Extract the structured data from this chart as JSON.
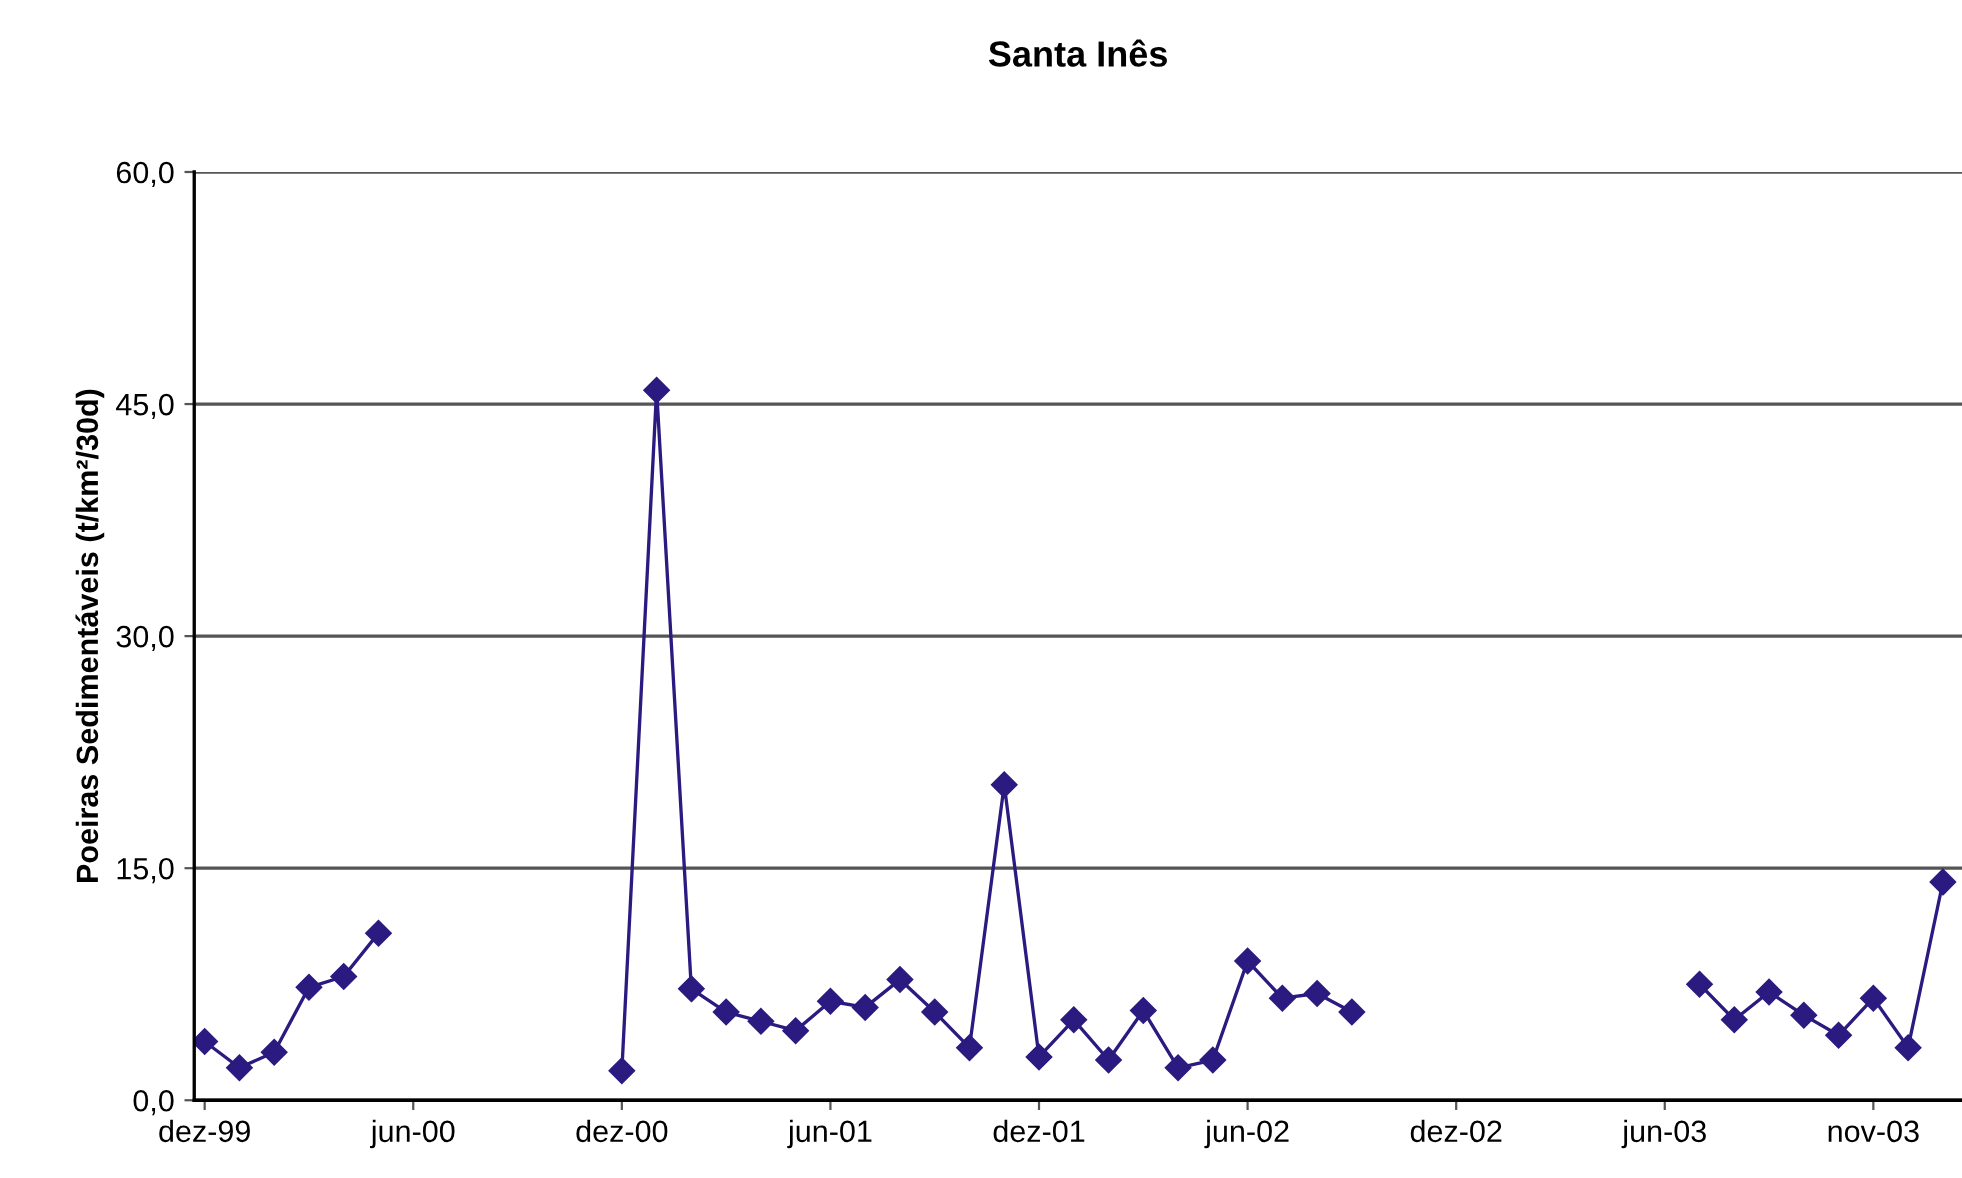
{
  "chart_data": {
    "type": "line",
    "title": "Santa Inês",
    "ylabel": "Poeiras Sedimentáveis (t/km²/30d)",
    "categories": [
      "dez-99",
      null,
      null,
      null,
      null,
      null,
      "jun-00",
      null,
      null,
      null,
      null,
      null,
      "dez-00",
      null,
      null,
      null,
      null,
      null,
      "jun-01",
      null,
      null,
      null,
      null,
      null,
      "dez-01",
      null,
      null,
      null,
      null,
      null,
      "jun-02",
      null,
      null,
      null,
      null,
      null,
      "dez-02",
      null,
      null,
      null,
      null,
      null,
      "jun-03",
      null,
      null,
      null,
      null,
      null,
      "nov-03",
      null,
      null
    ],
    "series": [
      {
        "color": "#2b1b80",
        "values": [
          3.8,
          2.1,
          3.1,
          7.3,
          8.0,
          10.8,
          null,
          null,
          null,
          null,
          null,
          null,
          1.9,
          45.9,
          7.2,
          5.7,
          5.1,
          4.5,
          6.4,
          6.0,
          7.8,
          5.7,
          3.4,
          20.4,
          2.8,
          5.2,
          2.6,
          5.8,
          2.1,
          2.6,
          9.0,
          6.6,
          6.9,
          5.7,
          null,
          null,
          null,
          null,
          null,
          null,
          null,
          null,
          null,
          7.5,
          5.2,
          7.0,
          5.5,
          4.2,
          6.6,
          3.4,
          14.1
        ]
      }
    ],
    "ylim": [
      0,
      60
    ],
    "yticks": [
      {
        "value": 0,
        "label": "0,0"
      },
      {
        "value": 15,
        "label": "15,0"
      },
      {
        "value": 30,
        "label": "30,0"
      },
      {
        "value": 45,
        "label": "45,0"
      },
      {
        "value": 60,
        "label": "60,0"
      }
    ],
    "grid": "y",
    "marker": "diamond",
    "line_style": "solid",
    "legend": false
  }
}
